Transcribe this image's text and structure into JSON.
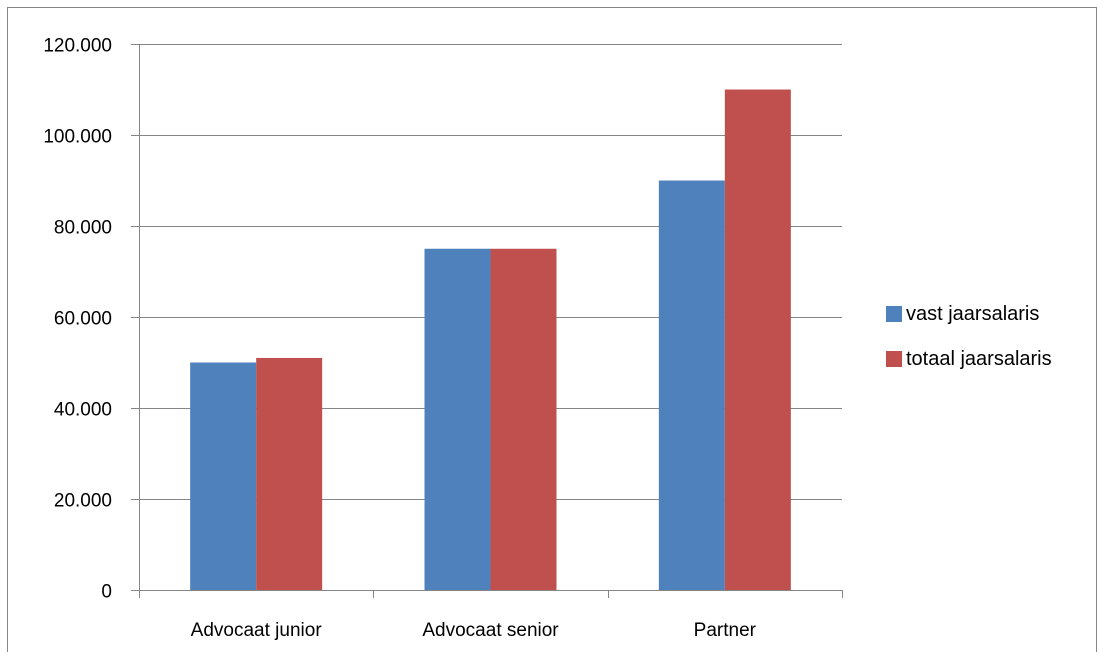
{
  "chart_data": {
    "type": "bar",
    "categories": [
      "Advocaat junior",
      "Advocaat senior",
      "Partner"
    ],
    "series": [
      {
        "name": "vast jaarsalaris",
        "values": [
          50000,
          75000,
          90000
        ],
        "color": "#4f81bd"
      },
      {
        "name": "totaal jaarsalaris",
        "values": [
          51000,
          75000,
          110000
        ],
        "color": "#c0504d"
      }
    ],
    "y_ticks": [
      {
        "value": 0,
        "label": "0"
      },
      {
        "value": 20000,
        "label": "20.000"
      },
      {
        "value": 40000,
        "label": "40.000"
      },
      {
        "value": 60000,
        "label": "60.000"
      },
      {
        "value": 80000,
        "label": "80.000"
      },
      {
        "value": 100000,
        "label": "100.000"
      },
      {
        "value": 120000,
        "label": "120.000"
      }
    ],
    "ylim": [
      0,
      120000
    ],
    "grid": true,
    "legend_position": "right",
    "gridline_color": "#868686",
    "axis_color": "#868686"
  }
}
